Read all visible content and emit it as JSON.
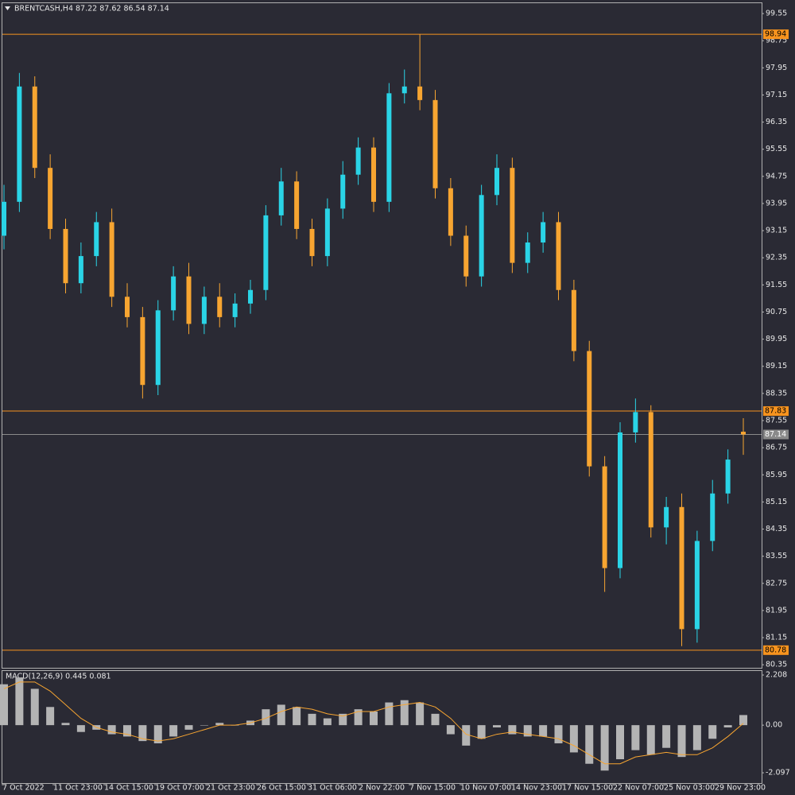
{
  "chart_data": [
    {
      "type": "candlestick",
      "title": "BRENTCASH,H4  87.22 87.62 86.54 87.14",
      "up_color": "#2ad4e6",
      "down_color": "#f7a531",
      "ylim": [
        80.26,
        99.88
      ],
      "yticks": [
        99.55,
        98.75,
        97.95,
        97.15,
        96.35,
        95.55,
        94.75,
        93.95,
        93.15,
        92.35,
        91.55,
        90.75,
        89.95,
        89.15,
        88.35,
        87.55,
        86.75,
        85.95,
        85.15,
        84.35,
        83.55,
        82.75,
        81.95,
        81.15,
        80.35
      ],
      "levels": [
        {
          "value": 98.94,
          "color": "#f7931e"
        },
        {
          "value": 87.83,
          "color": "#f7931e"
        },
        {
          "value": 80.78,
          "color": "#f7931e"
        },
        {
          "value": 87.14,
          "color": "#8a8a8a"
        }
      ],
      "date_labels": [
        "7 Oct 2022",
        "11 Oct 23:00",
        "14 Oct 15:00",
        "19 Oct 07:00",
        "21 Oct 23:00",
        "26 Oct 15:00",
        "31 Oct 06:00",
        "2 Nov 22:00",
        "7 Nov 15:00",
        "10 Nov 07:00",
        "14 Nov 23:00",
        "17 Nov 15:00",
        "22 Nov 07:00",
        "25 Nov 03:00",
        "29 Nov 23:00"
      ],
      "open": [
        93.0,
        94.0,
        97.4,
        95.0,
        93.2,
        91.6,
        92.4,
        93.4,
        91.2,
        90.6,
        88.6,
        90.8,
        91.8,
        90.4,
        91.2,
        90.6,
        91.0,
        91.4,
        93.6,
        94.6,
        93.2,
        92.4,
        93.8,
        94.8,
        95.6,
        94.0,
        97.2,
        97.4,
        97.0,
        94.4,
        93.0,
        91.8,
        94.2,
        95.0,
        92.2,
        92.8,
        93.4,
        91.4,
        89.6,
        86.2,
        83.2,
        87.2,
        87.8,
        84.4,
        85.0,
        81.4,
        84.0,
        85.4,
        87.22
      ],
      "high": [
        94.5,
        97.8,
        97.7,
        95.4,
        93.5,
        92.8,
        93.7,
        93.8,
        91.6,
        90.9,
        91.1,
        92.1,
        92.2,
        91.5,
        91.6,
        91.3,
        91.7,
        93.9,
        95.0,
        94.9,
        93.5,
        94.1,
        95.2,
        95.9,
        95.9,
        97.5,
        97.9,
        98.94,
        97.3,
        94.7,
        93.3,
        94.5,
        95.4,
        95.3,
        93.1,
        93.7,
        93.7,
        91.7,
        89.9,
        86.5,
        87.5,
        88.2,
        88.0,
        85.3,
        85.4,
        84.3,
        85.8,
        86.7,
        87.62
      ],
      "low": [
        92.6,
        93.7,
        94.7,
        92.9,
        91.3,
        91.3,
        92.1,
        90.9,
        90.3,
        88.2,
        88.3,
        90.5,
        90.1,
        90.1,
        90.3,
        90.3,
        90.7,
        91.1,
        93.3,
        92.9,
        92.1,
        92.1,
        93.5,
        94.5,
        93.7,
        93.7,
        96.9,
        96.7,
        94.1,
        92.7,
        91.5,
        91.5,
        93.9,
        91.9,
        91.9,
        92.5,
        91.1,
        89.3,
        85.9,
        82.5,
        82.9,
        86.9,
        84.1,
        83.9,
        80.9,
        81.0,
        83.7,
        85.1,
        86.54
      ],
      "close": [
        94.0,
        97.4,
        95.0,
        93.2,
        91.6,
        92.4,
        93.4,
        91.2,
        90.6,
        88.6,
        90.8,
        91.8,
        90.4,
        91.2,
        90.6,
        91.0,
        91.4,
        93.6,
        94.6,
        93.2,
        92.4,
        93.8,
        94.8,
        95.6,
        94.0,
        97.2,
        97.4,
        97.0,
        94.4,
        93.0,
        91.8,
        94.2,
        95.0,
        92.2,
        92.8,
        93.4,
        91.4,
        89.6,
        86.2,
        83.2,
        87.2,
        87.8,
        84.4,
        85.0,
        81.4,
        84.0,
        85.4,
        86.4,
        87.14
      ]
    },
    {
      "type": "macd",
      "title": "MACD(12,26,9) 0.445 0.081",
      "ylim": [
        -2.55,
        2.42
      ],
      "yticks": [
        2.208,
        {
          "value": 0,
          "label": "0.00"
        },
        -2.097
      ],
      "series": [
        {
          "name": "MACD",
          "color": "#b4b4b4",
          "values": [
            1.8,
            2.1,
            1.6,
            0.8,
            0.1,
            -0.3,
            -0.2,
            -0.4,
            -0.5,
            -0.7,
            -0.8,
            -0.5,
            -0.2,
            0.0,
            0.1,
            0.0,
            0.2,
            0.7,
            0.9,
            0.8,
            0.5,
            0.3,
            0.5,
            0.7,
            0.6,
            1.0,
            1.1,
            1.0,
            0.5,
            -0.4,
            -0.9,
            -0.6,
            -0.1,
            -0.4,
            -0.5,
            -0.5,
            -0.8,
            -1.2,
            -1.7,
            -2.0,
            -1.5,
            -1.1,
            -1.3,
            -1.0,
            -1.4,
            -1.1,
            -0.6,
            -0.1,
            0.445
          ]
        },
        {
          "name": "Signal",
          "color": "#f7a531",
          "values": [
            1.6,
            1.9,
            1.9,
            1.5,
            0.9,
            0.3,
            -0.1,
            -0.3,
            -0.4,
            -0.6,
            -0.7,
            -0.6,
            -0.4,
            -0.2,
            0.0,
            0.0,
            0.1,
            0.3,
            0.6,
            0.8,
            0.7,
            0.5,
            0.4,
            0.6,
            0.6,
            0.8,
            0.9,
            1.0,
            0.8,
            0.3,
            -0.4,
            -0.6,
            -0.4,
            -0.3,
            -0.4,
            -0.5,
            -0.6,
            -0.9,
            -1.3,
            -1.7,
            -1.7,
            -1.4,
            -1.3,
            -1.2,
            -1.3,
            -1.3,
            -1.0,
            -0.5,
            0.081
          ]
        }
      ]
    }
  ]
}
